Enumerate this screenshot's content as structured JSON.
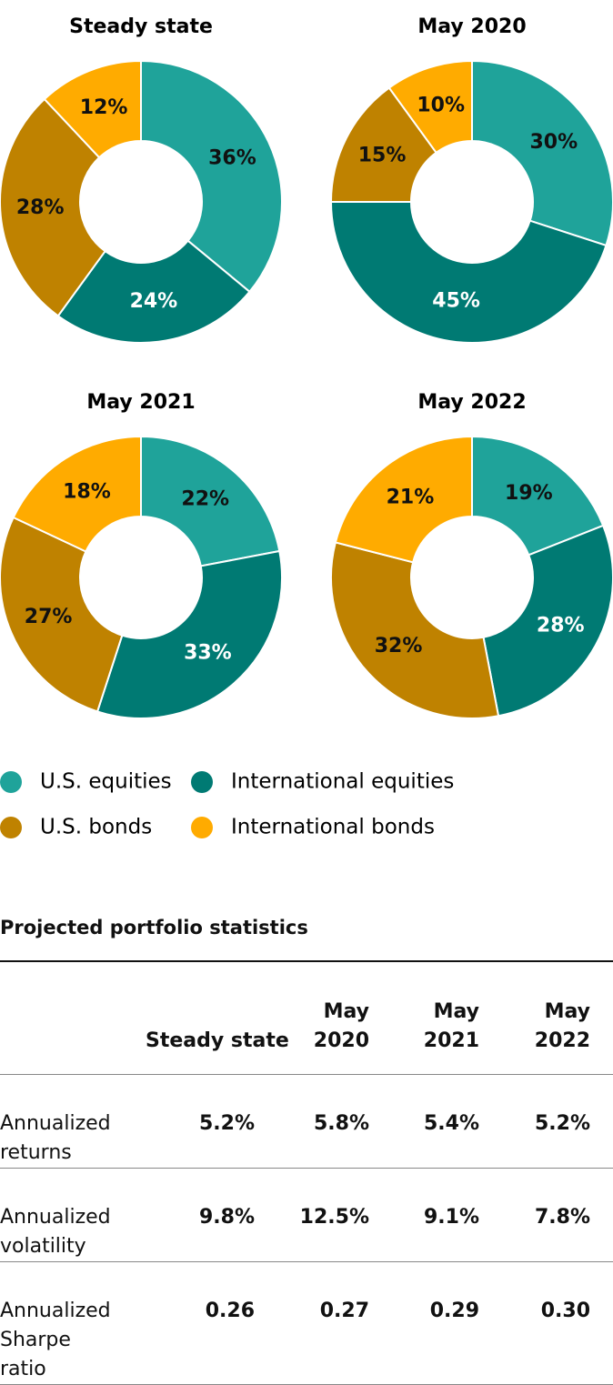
{
  "chart_data": [
    {
      "type": "pie",
      "title": "Steady state",
      "categories": [
        "U.S. equities",
        "International equities",
        "U.S. bonds",
        "International bonds"
      ],
      "values": [
        36,
        24,
        28,
        12
      ],
      "value_labels": [
        "36%",
        "24%",
        "28%",
        "12%"
      ],
      "colors": [
        "#1fa39a",
        "#007a73",
        "#bf8200",
        "#ffab00"
      ]
    },
    {
      "type": "pie",
      "title": "May 2020",
      "categories": [
        "U.S. equities",
        "International equities",
        "U.S. bonds",
        "International bonds"
      ],
      "values": [
        30,
        45,
        15,
        10
      ],
      "value_labels": [
        "30%",
        "45%",
        "15%",
        "10%"
      ],
      "colors": [
        "#1fa39a",
        "#007a73",
        "#bf8200",
        "#ffab00"
      ]
    },
    {
      "type": "pie",
      "title": "May 2021",
      "categories": [
        "U.S. equities",
        "International equities",
        "U.S. bonds",
        "International bonds"
      ],
      "values": [
        22,
        33,
        27,
        18
      ],
      "value_labels": [
        "22%",
        "33%",
        "27%",
        "18%"
      ],
      "colors": [
        "#1fa39a",
        "#007a73",
        "#bf8200",
        "#ffab00"
      ]
    },
    {
      "type": "pie",
      "title": "May 2022",
      "categories": [
        "U.S. equities",
        "International equities",
        "U.S. bonds",
        "International bonds"
      ],
      "values": [
        19,
        28,
        32,
        21
      ],
      "value_labels": [
        "19%",
        "28%",
        "32%",
        "21%"
      ],
      "colors": [
        "#1fa39a",
        "#007a73",
        "#bf8200",
        "#ffab00"
      ]
    }
  ],
  "table": {
    "title": "Projected portfolio statistics",
    "columns": [
      "Steady state",
      "May 2020",
      "May 2021",
      "May 2022"
    ],
    "rows": [
      {
        "label": "Annualized returns",
        "values": [
          "5.2%",
          "5.8%",
          "5.4%",
          "5.2%"
        ]
      },
      {
        "label": "Annualized volatility",
        "values": [
          "9.8%",
          "12.5%",
          "9.1%",
          "7.8%"
        ]
      },
      {
        "label": "Annualized Sharpe ratio",
        "values": [
          "0.26",
          "0.27",
          "0.29",
          "0.30"
        ]
      }
    ]
  }
}
